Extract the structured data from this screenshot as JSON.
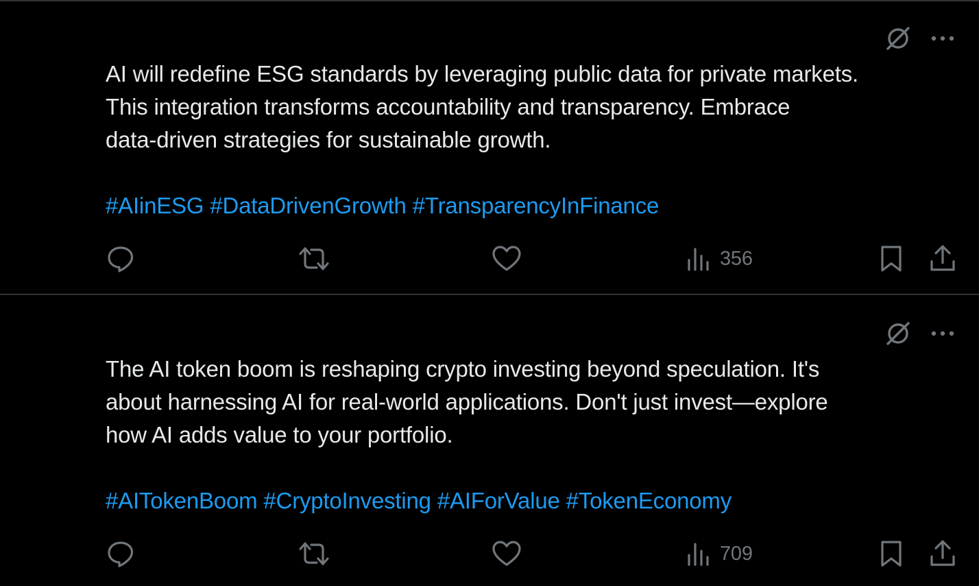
{
  "posts": [
    {
      "text_lines": [
        "AI will redefine ESG standards by leveraging public data for private markets.",
        "This integration transforms accountability and transparency. Embrace",
        "data-driven strategies for sustainable growth."
      ],
      "hashtags": [
        "#AIinESG",
        "#DataDrivenGrowth",
        "#TransparencyInFinance"
      ],
      "views": "356"
    },
    {
      "text_lines": [
        "The AI token boom is reshaping crypto investing beyond speculation. It's",
        "about harnessing AI for real-world applications. Don't just invest—explore",
        "how AI adds value to your portfolio."
      ],
      "hashtags": [
        "#AITokenBoom",
        "#CryptoInvesting",
        "#AIForValue",
        "#TokenEconomy"
      ],
      "views": "709"
    }
  ],
  "icons": {
    "grok": "grok-icon",
    "more": "more-horizontal-icon",
    "reply": "reply-icon",
    "repost": "repost-icon",
    "like": "heart-icon",
    "views": "views-chart-icon",
    "bookmark": "bookmark-icon",
    "share": "share-icon"
  },
  "colors": {
    "background": "#000000",
    "text": "#e7e9ea",
    "hashtag": "#1d9bf0",
    "secondary": "#71767b",
    "divider": "#2f3336"
  }
}
